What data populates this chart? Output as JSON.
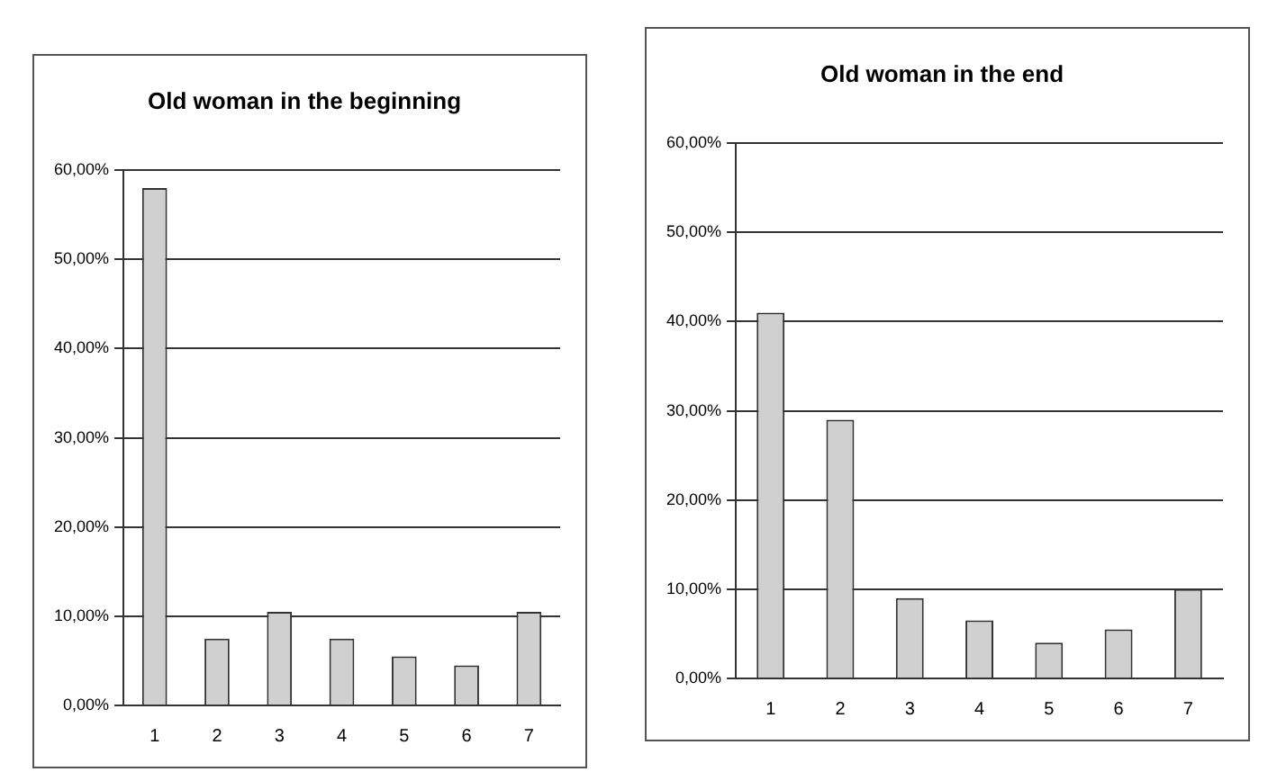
{
  "chart_data": [
    {
      "type": "bar",
      "title": "Old woman in the beginning",
      "categories": [
        "1",
        "2",
        "3",
        "4",
        "5",
        "6",
        "7"
      ],
      "values": [
        58,
        7.5,
        10.5,
        7.5,
        5.5,
        4.5,
        10.5
      ],
      "color": "#d0d0d0",
      "ylim": [
        0,
        60
      ],
      "yticks": [
        {
          "value": 0,
          "label": "0,00%"
        },
        {
          "value": 10,
          "label": "10,00%"
        },
        {
          "value": 20,
          "label": "20,00%"
        },
        {
          "value": 30,
          "label": "30,00%"
        },
        {
          "value": 40,
          "label": "40,00%"
        },
        {
          "value": 50,
          "label": "50,00%"
        },
        {
          "value": 60,
          "label": "60,00%"
        }
      ],
      "grid": "y",
      "legend": false
    },
    {
      "type": "bar",
      "title": "Old woman in the end",
      "categories": [
        "1",
        "2",
        "3",
        "4",
        "5",
        "6",
        "7"
      ],
      "values": [
        41,
        29,
        9,
        6.5,
        4,
        5.5,
        10
      ],
      "color": "#d0d0d0",
      "ylim": [
        0,
        60
      ],
      "yticks": [
        {
          "value": 0,
          "label": "0,00%"
        },
        {
          "value": 10,
          "label": "10,00%"
        },
        {
          "value": 20,
          "label": "20,00%"
        },
        {
          "value": 30,
          "label": "30,00%"
        },
        {
          "value": 40,
          "label": "40,00%"
        },
        {
          "value": 50,
          "label": "50,00%"
        },
        {
          "value": 60,
          "label": "60,00%"
        }
      ],
      "grid": "y",
      "legend": false
    }
  ]
}
